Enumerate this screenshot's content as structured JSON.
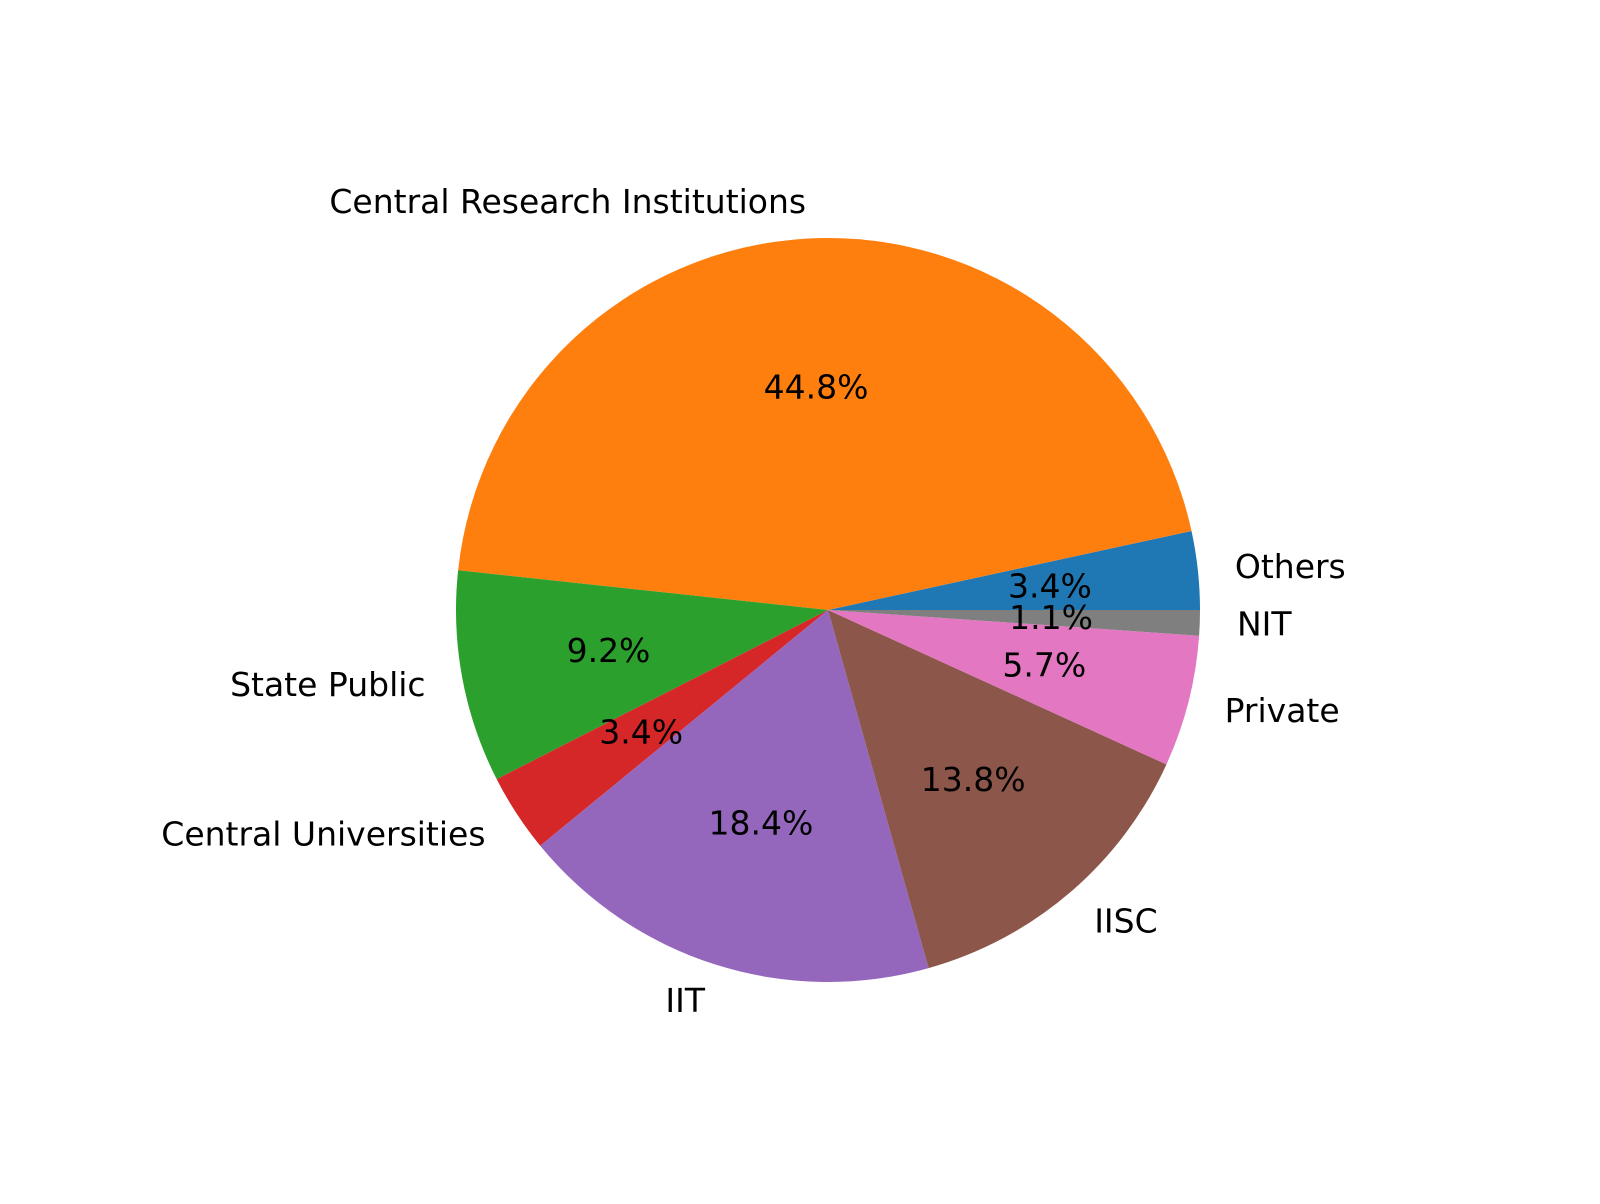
{
  "chart_data": {
    "type": "pie",
    "title": "",
    "start_angle_deg": 0,
    "direction": "counterclockwise",
    "autopct_format": "1 decimal percent",
    "slices": [
      {
        "label": "Others",
        "value": 3.4,
        "pct_label": "3.4%",
        "color": "#1f77b4"
      },
      {
        "label": "Central Research Institutions",
        "value": 44.8,
        "pct_label": "44.8%",
        "color": "#ff7f0e"
      },
      {
        "label": "State Public",
        "value": 9.2,
        "pct_label": "9.2%",
        "color": "#2ca02c"
      },
      {
        "label": "Central Universities",
        "value": 3.4,
        "pct_label": "3.4%",
        "color": "#d62728"
      },
      {
        "label": "IIT",
        "value": 18.4,
        "pct_label": "18.4%",
        "color": "#9467bd"
      },
      {
        "label": "IISC",
        "value": 13.8,
        "pct_label": "13.8%",
        "color": "#8c564b"
      },
      {
        "label": "Private",
        "value": 5.7,
        "pct_label": "5.7%",
        "color": "#e377c2"
      },
      {
        "label": "NIT",
        "value": 1.1,
        "pct_label": "1.1%",
        "color": "#7f7f7f"
      }
    ]
  }
}
